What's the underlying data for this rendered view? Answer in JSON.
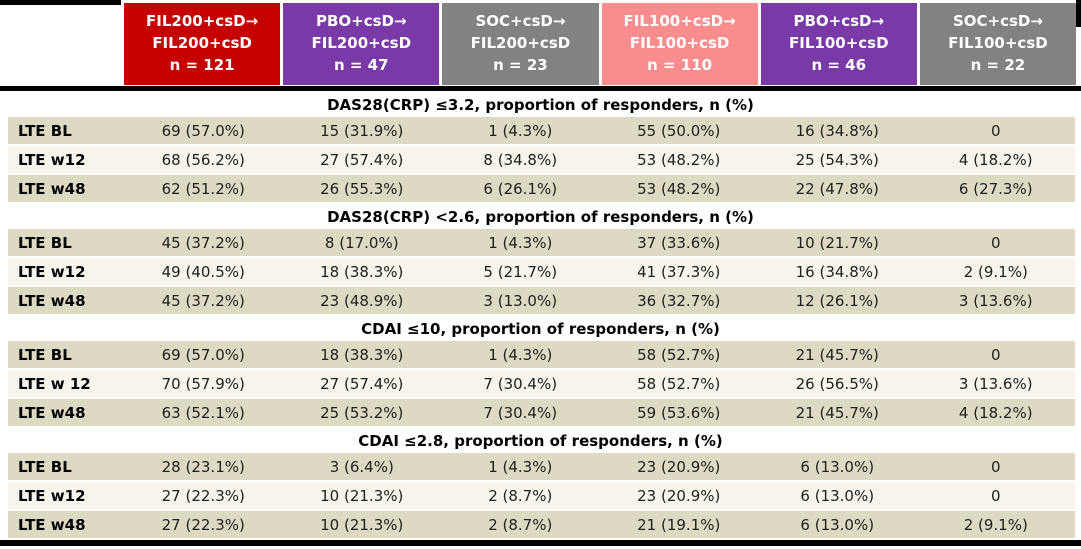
{
  "colors": {
    "red": "#C60000",
    "purple": "#7939A6",
    "gray": "#828282",
    "salmon": "#F98D8D",
    "row_odd": "#DDD9C3",
    "row_even": "#F7F4EB",
    "border": "#000000",
    "header_text": "#ffffff"
  },
  "table": {
    "columns": [
      {
        "line1": "FIL200+csD→",
        "line2": "FIL200+csD",
        "n": "n = 121",
        "color": "#C60000"
      },
      {
        "line1": "PBO+csD→",
        "line2": "FIL200+csD",
        "n": "n = 47",
        "color": "#7939A6"
      },
      {
        "line1": "SOC+csD→",
        "line2": "FIL200+csD",
        "n": "n = 23",
        "color": "#828282"
      },
      {
        "line1": "FIL100+csD→",
        "line2": "FIL100+csD",
        "n": "n = 110",
        "color": "#F98D8D"
      },
      {
        "line1": "PBO+csD→",
        "line2": "FIL100+csD",
        "n": "n = 46",
        "color": "#7939A6"
      },
      {
        "line1": "SOC+csD→",
        "line2": "FIL100+csD",
        "n": "n = 22",
        "color": "#828282"
      }
    ],
    "sections": [
      {
        "title": "DAS28(CRP) ≤3.2, proportion of responders, n (%)",
        "rows": [
          {
            "label": "LTE BL",
            "values": [
              "69 (57.0%)",
              "15 (31.9%)",
              "1 (4.3%)",
              "55 (50.0%)",
              "16 (34.8%)",
              "0"
            ]
          },
          {
            "label": "LTE w12",
            "values": [
              "68 (56.2%)",
              "27 (57.4%)",
              "8 (34.8%)",
              "53 (48.2%)",
              "25 (54.3%)",
              "4 (18.2%)"
            ]
          },
          {
            "label": "LTE w48",
            "values": [
              "62 (51.2%)",
              "26 (55.3%)",
              "6 (26.1%)",
              "53 (48.2%)",
              "22 (47.8%)",
              "6 (27.3%)"
            ]
          }
        ]
      },
      {
        "title": "DAS28(CRP) <2.6, proportion of responders, n (%)",
        "rows": [
          {
            "label": "LTE BL",
            "values": [
              "45 (37.2%)",
              "8 (17.0%)",
              "1 (4.3%)",
              "37 (33.6%)",
              "10 (21.7%)",
              "0"
            ]
          },
          {
            "label": "LTE w12",
            "values": [
              "49 (40.5%)",
              "18 (38.3%)",
              "5 (21.7%)",
              "41 (37.3%)",
              "16 (34.8%)",
              "2 (9.1%)"
            ]
          },
          {
            "label": "LTE w48",
            "values": [
              "45 (37.2%)",
              "23 (48.9%)",
              "3 (13.0%)",
              "36 (32.7%)",
              "12 (26.1%)",
              "3 (13.6%)"
            ]
          }
        ]
      },
      {
        "title": "CDAI ≤10, proportion of responders, n (%)",
        "rows": [
          {
            "label": "LTE BL",
            "values": [
              "69 (57.0%)",
              "18 (38.3%)",
              "1 (4.3%)",
              "58 (52.7%)",
              "21 (45.7%)",
              "0"
            ]
          },
          {
            "label": "LTE w 12",
            "values": [
              "70 (57.9%)",
              "27 (57.4%)",
              "7 (30.4%)",
              "58 (52.7%)",
              "26 (56.5%)",
              "3 (13.6%)"
            ]
          },
          {
            "label": "LTE w48",
            "values": [
              "63 (52.1%)",
              "25 (53.2%)",
              "7 (30.4%)",
              "59 (53.6%)",
              "21 (45.7%)",
              "4 (18.2%)"
            ]
          }
        ]
      },
      {
        "title": "CDAI ≤2.8, proportion of responders, n (%)",
        "rows": [
          {
            "label": "LTE BL",
            "values": [
              "28 (23.1%)",
              "3 (6.4%)",
              "1 (4.3%)",
              "23 (20.9%)",
              "6 (13.0%)",
              "0"
            ]
          },
          {
            "label": "LTE w12",
            "values": [
              "27 (22.3%)",
              "10 (21.3%)",
              "2 (8.7%)",
              "23 (20.9%)",
              "6 (13.0%)",
              "0"
            ]
          },
          {
            "label": "LTE w48",
            "values": [
              "27 (22.3%)",
              "10 (21.3%)",
              "2 (8.7%)",
              "21 (19.1%)",
              "6 (13.0%)",
              "2 (9.1%)"
            ]
          }
        ]
      }
    ]
  }
}
